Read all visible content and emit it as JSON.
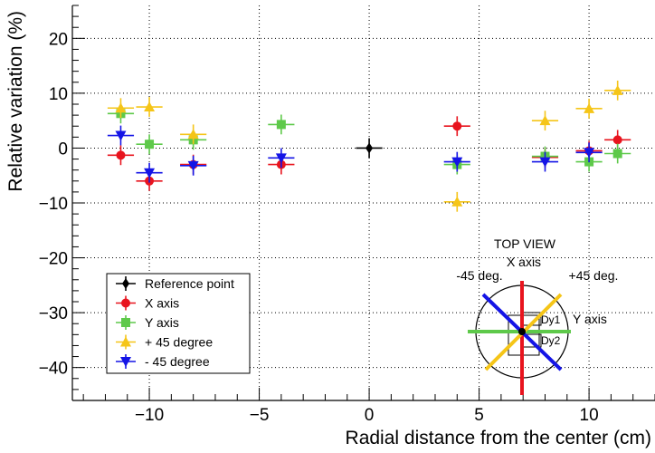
{
  "chart_data": {
    "type": "scatter",
    "xlabel": "Radial distance from the center (cm)",
    "ylabel": "Relative variation (%)",
    "xlim": [
      -13.5,
      13
    ],
    "ylim": [
      -46,
      26
    ],
    "xticks": [
      -10,
      -5,
      0,
      5,
      10
    ],
    "xtick_labels": [
      "−10",
      "−5",
      "0",
      "5",
      "10"
    ],
    "yticks": [
      -40,
      -30,
      -20,
      -10,
      0,
      10,
      20
    ],
    "ytick_labels": [
      "−40",
      "−30",
      "−20",
      "−10",
      "0",
      "10",
      "20"
    ],
    "grid": "dotted",
    "legend_position": "bottom-left",
    "series": [
      {
        "name": "Reference point",
        "color": "#000000",
        "marker": "diamond",
        "points": [
          {
            "x": 0,
            "y": 0,
            "xerr": 0.6,
            "yerr": 1.8
          }
        ]
      },
      {
        "name": "X axis",
        "color": "#e8141e",
        "marker": "circle",
        "points": [
          {
            "x": -11.3,
            "y": -1.3,
            "xerr": 0.6,
            "yerr": 1.8
          },
          {
            "x": -10.0,
            "y": -6.0,
            "xerr": 0.6,
            "yerr": 1.8
          },
          {
            "x": -8.0,
            "y": -3.0,
            "xerr": 0.6,
            "yerr": 1.8
          },
          {
            "x": -4.0,
            "y": -3.0,
            "xerr": 0.6,
            "yerr": 1.8
          },
          {
            "x": 4.0,
            "y": 4.0,
            "xerr": 0.6,
            "yerr": 1.8
          },
          {
            "x": 8.0,
            "y": -1.7,
            "xerr": 0.6,
            "yerr": 1.8
          },
          {
            "x": 10.0,
            "y": -0.5,
            "xerr": 0.6,
            "yerr": 1.8
          },
          {
            "x": 11.3,
            "y": 1.5,
            "xerr": 0.6,
            "yerr": 1.8
          }
        ]
      },
      {
        "name": "Y axis",
        "color": "#5ec94a",
        "marker": "square",
        "points": [
          {
            "x": -11.3,
            "y": 6.3,
            "xerr": 0.6,
            "yerr": 1.8
          },
          {
            "x": -10.0,
            "y": 0.7,
            "xerr": 0.6,
            "yerr": 1.8
          },
          {
            "x": -8.0,
            "y": 1.5,
            "xerr": 0.6,
            "yerr": 1.8
          },
          {
            "x": -4.0,
            "y": 4.3,
            "xerr": 0.6,
            "yerr": 1.8
          },
          {
            "x": 4.0,
            "y": -3.0,
            "xerr": 0.6,
            "yerr": 1.8
          },
          {
            "x": 8.0,
            "y": -1.5,
            "xerr": 0.6,
            "yerr": 1.8
          },
          {
            "x": 10.0,
            "y": -2.5,
            "xerr": 0.6,
            "yerr": 1.8
          },
          {
            "x": 11.3,
            "y": -1.0,
            "xerr": 0.6,
            "yerr": 1.8
          }
        ]
      },
      {
        "name": "+ 45 degree",
        "color": "#f5c518",
        "marker": "triangle-up",
        "points": [
          {
            "x": -11.3,
            "y": 7.3,
            "xerr": 0.6,
            "yerr": 1.8
          },
          {
            "x": -10.0,
            "y": 7.5,
            "xerr": 0.6,
            "yerr": 1.8
          },
          {
            "x": -8.0,
            "y": 2.5,
            "xerr": 0.6,
            "yerr": 1.8
          },
          {
            "x": 4.0,
            "y": -9.8,
            "xerr": 0.6,
            "yerr": 1.8
          },
          {
            "x": 8.0,
            "y": 5.0,
            "xerr": 0.6,
            "yerr": 1.8
          },
          {
            "x": 10.0,
            "y": 7.2,
            "xerr": 0.6,
            "yerr": 1.8
          },
          {
            "x": 11.3,
            "y": 10.5,
            "xerr": 0.6,
            "yerr": 1.8
          }
        ]
      },
      {
        "name": "- 45 degree",
        "color": "#1414e6",
        "marker": "triangle-down",
        "points": [
          {
            "x": -11.3,
            "y": 2.3,
            "xerr": 0.6,
            "yerr": 1.8
          },
          {
            "x": -10.0,
            "y": -4.5,
            "xerr": 0.6,
            "yerr": 1.8
          },
          {
            "x": -8.0,
            "y": -3.2,
            "xerr": 0.6,
            "yerr": 1.8
          },
          {
            "x": -4.0,
            "y": -1.8,
            "xerr": 0.6,
            "yerr": 1.8
          },
          {
            "x": 4.0,
            "y": -2.5,
            "xerr": 0.6,
            "yerr": 1.8
          },
          {
            "x": 8.0,
            "y": -2.5,
            "xerr": 0.6,
            "yerr": 1.8
          },
          {
            "x": 10.0,
            "y": -0.8,
            "xerr": 0.6,
            "yerr": 1.8
          }
        ]
      }
    ],
    "inset": {
      "title": "TOP VIEW",
      "labels": {
        "x_axis": "X axis",
        "y_axis": "Y axis",
        "minus45": "-45 deg.",
        "plus45": "+45 deg.",
        "dy1": "Dy1",
        "dy2": "Dy2"
      },
      "colors": {
        "x_axis": "#e8141e",
        "y_axis": "#5ec94a",
        "plus45": "#f5c518",
        "minus45": "#1414e6"
      }
    }
  }
}
